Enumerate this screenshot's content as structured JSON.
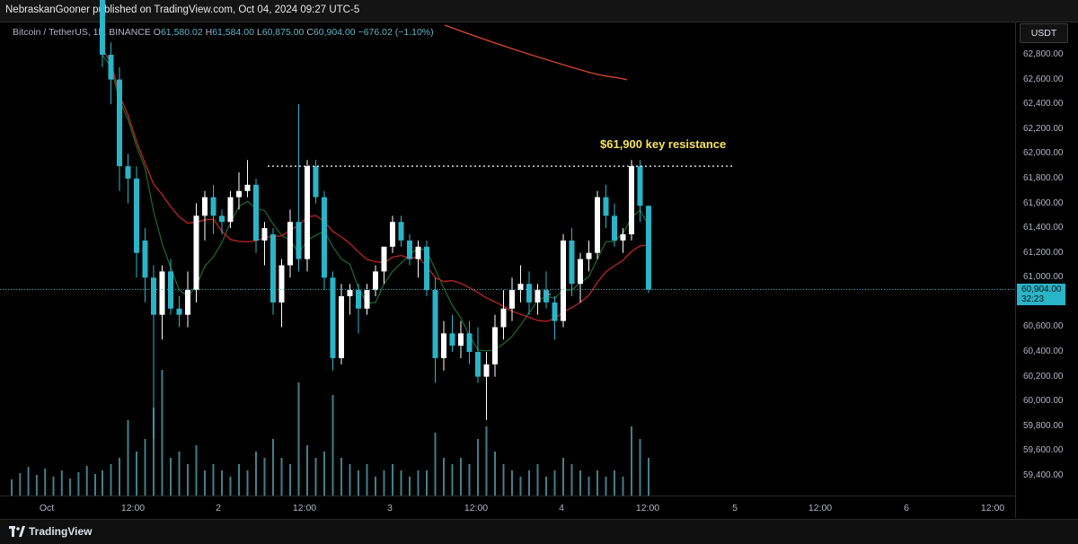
{
  "header": {
    "published": "NebraskanGooner published on TradingView.com, Oct 04, 2024 09:27 UTC-5"
  },
  "legend": {
    "symbol": "Bitcoin / TetherUS, 1h, BINANCE",
    "o_label": "O",
    "o": "61,580.02",
    "h_label": "H",
    "h": "61,584.00",
    "l_label": "L",
    "l": "60,875.00",
    "c_label": "C",
    "c": "60,904.00",
    "change": "−676.02 (−1.10%)"
  },
  "currency": "USDT",
  "price_axis": [
    "62,800.00",
    "62,600.00",
    "62,400.00",
    "62,200.00",
    "62,000.00",
    "61,800.00",
    "61,600.00",
    "61,400.00",
    "61,200.00",
    "61,000.00",
    "60,600.00",
    "60,400.00",
    "60,200.00",
    "60,000.00",
    "59,800.00",
    "59,600.00",
    "59,400.00"
  ],
  "last_price": {
    "value": "60,904.00",
    "countdown": "32:23"
  },
  "time_axis": [
    "Oct",
    "12:00",
    "2",
    "12:00",
    "3",
    "12:00",
    "4",
    "12:00",
    "5",
    "12:00",
    "6",
    "12:00"
  ],
  "annotation": "$61,900 key resistance",
  "footer": {
    "brand": "TradingView"
  },
  "colors": {
    "up": "#ffffff",
    "down": "#2ab4c7",
    "ma_red": "#b32323",
    "ma_green": "#1f6b2c",
    "ma_orange": "#d0472a",
    "annotation": "#f7e35b"
  },
  "chart_data": {
    "type": "candlestick",
    "ylim": [
      59300,
      63000
    ],
    "resistance": 61900,
    "last": 60904,
    "candles": [
      [
        63300,
        63400,
        62700,
        62800
      ],
      [
        62800,
        62900,
        62400,
        62600
      ],
      [
        62600,
        62700,
        61700,
        61900
      ],
      [
        61900,
        62000,
        61600,
        61800
      ],
      [
        61800,
        61900,
        61000,
        61200
      ],
      [
        61300,
        61400,
        60800,
        61000
      ],
      [
        61000,
        61100,
        59700,
        60700
      ],
      [
        60700,
        61100,
        60500,
        61050
      ],
      [
        61050,
        61150,
        60700,
        60750
      ],
      [
        60750,
        60850,
        60600,
        60700
      ],
      [
        60700,
        61050,
        60600,
        60900
      ],
      [
        60900,
        61600,
        60800,
        61500
      ],
      [
        61500,
        61700,
        61300,
        61650
      ],
      [
        61650,
        61750,
        61350,
        61500
      ],
      [
        61500,
        61550,
        61350,
        61450
      ],
      [
        61450,
        61700,
        61400,
        61650
      ],
      [
        61650,
        61850,
        61550,
        61700
      ],
      [
        61700,
        61950,
        61650,
        61750
      ],
      [
        61750,
        61800,
        61200,
        61300
      ],
      [
        61300,
        61450,
        61100,
        61400
      ],
      [
        61350,
        61400,
        60700,
        60800
      ],
      [
        60800,
        61150,
        60600,
        61100
      ],
      [
        61100,
        61550,
        61000,
        61450
      ],
      [
        61450,
        62400,
        61050,
        61150
      ],
      [
        61150,
        61950,
        61050,
        61900
      ],
      [
        61900,
        61950,
        61600,
        61650
      ],
      [
        61650,
        61700,
        60900,
        61000
      ],
      [
        61000,
        61050,
        60250,
        60350
      ],
      [
        60350,
        60950,
        60300,
        60850
      ],
      [
        60850,
        60950,
        60700,
        60900
      ],
      [
        60900,
        60950,
        60550,
        60750
      ],
      [
        60750,
        60950,
        60700,
        60900
      ],
      [
        60900,
        61100,
        60850,
        61050
      ],
      [
        61050,
        61250,
        60950,
        61250
      ],
      [
        61250,
        61500,
        61200,
        61450
      ],
      [
        61450,
        61500,
        61250,
        61300
      ],
      [
        61300,
        61350,
        61100,
        61150
      ],
      [
        61150,
        61300,
        61000,
        61250
      ],
      [
        61250,
        61300,
        60850,
        60900
      ],
      [
        60900,
        61000,
        60150,
        60350
      ],
      [
        60350,
        60650,
        60250,
        60550
      ],
      [
        60550,
        60700,
        60400,
        60450
      ],
      [
        60450,
        60650,
        60350,
        60550
      ],
      [
        60550,
        60650,
        60300,
        60400
      ],
      [
        60400,
        60600,
        60150,
        60200
      ],
      [
        60200,
        60400,
        59850,
        60300
      ],
      [
        60300,
        60700,
        60200,
        60600
      ],
      [
        60600,
        60900,
        60500,
        60750
      ],
      [
        60750,
        61000,
        60650,
        60900
      ],
      [
        60900,
        61100,
        60800,
        60950
      ],
      [
        60950,
        61050,
        60700,
        60800
      ],
      [
        60800,
        60950,
        60700,
        60900
      ],
      [
        60900,
        61050,
        60750,
        60800
      ],
      [
        60800,
        60850,
        60500,
        60650
      ],
      [
        60650,
        61350,
        60600,
        61300
      ],
      [
        61300,
        61400,
        60850,
        60950
      ],
      [
        60950,
        61200,
        60800,
        61150
      ],
      [
        61150,
        61300,
        61050,
        61200
      ],
      [
        61200,
        61700,
        61150,
        61650
      ],
      [
        61650,
        61750,
        61400,
        61500
      ],
      [
        61500,
        61600,
        61250,
        61300
      ],
      [
        61300,
        61400,
        61200,
        61350
      ],
      [
        61350,
        61950,
        61300,
        61900
      ],
      [
        61900,
        61950,
        61450,
        61580
      ],
      [
        61580,
        61584,
        60875,
        60904
      ]
    ],
    "volume": [
      4,
      5,
      6,
      12,
      7,
      9,
      14,
      20,
      6,
      7,
      5,
      8,
      4,
      5,
      4,
      3,
      5,
      4,
      7,
      6,
      9,
      6,
      5,
      18,
      8,
      6,
      7,
      16,
      6,
      5,
      4,
      5,
      3,
      4,
      5,
      4,
      3,
      4,
      4,
      10,
      6,
      5,
      6,
      5,
      9,
      11,
      7,
      5,
      4,
      3,
      4,
      5,
      3,
      4,
      6,
      5,
      4,
      3,
      4,
      3,
      4,
      3,
      11,
      9,
      6
    ]
  }
}
